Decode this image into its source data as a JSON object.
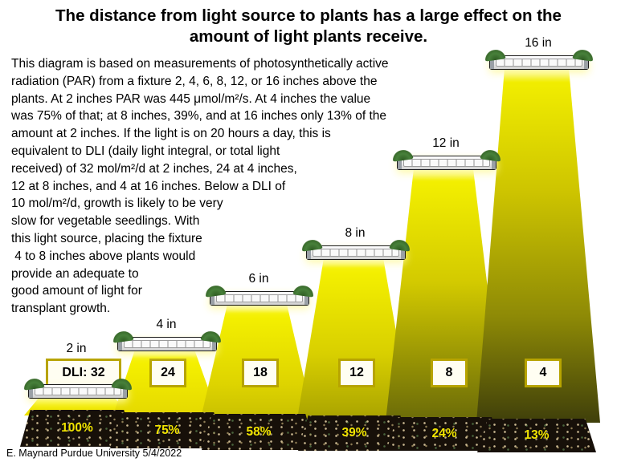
{
  "title": {
    "line1": "The distance from light source to plants has a large effect on the",
    "line2": "amount of light plants receive."
  },
  "body": {
    "lines": [
      "This diagram is based on measurements of photosynthetically active",
      "radiation (PAR) from a fixture 2, 4, 6, 8, 12, or 16 inches above the",
      "plants. At 2 inches PAR was 445 μmol/m²/s. At 4 inches the value",
      "was 75% of that; at 8 inches, 39%, and at 16 inches only 13% of the",
      "amount at 2 inches. If the light is on 20 hours a day, this is",
      "equivalent to DLI (daily light integral, or total light",
      "received) of 32 mol/m²/d at 2 inches, 24 at 4 inches,",
      "12 at 8 inches, and 4 at 16 inches. Below a DLI of",
      "10 mol/m²/d, growth is likely to be very",
      "slow for vegetable seedlings. With",
      "this light source, placing the fixture",
      " 4 to 8 inches above plants would",
      "provide an adequate to",
      "good amount of light for",
      "transplant growth."
    ]
  },
  "fixtures": [
    {
      "height_label": "2 in",
      "dli_label": "DLI: 32",
      "coverage_pct": "100%"
    },
    {
      "height_label": "4 in",
      "dli_label": "24",
      "coverage_pct": "75%"
    },
    {
      "height_label": "6 in",
      "dli_label": "18",
      "coverage_pct": "58%"
    },
    {
      "height_label": "8 in",
      "dli_label": "12",
      "coverage_pct": "39%"
    },
    {
      "height_label": "12 in",
      "dli_label": "8",
      "coverage_pct": "24%"
    },
    {
      "height_label": "16 in",
      "dli_label": "4",
      "coverage_pct": "13%"
    }
  ],
  "footer": {
    "credit": "E. Maynard Purdue University 5/4/2022"
  },
  "colors": {
    "cone_bright_yellow": "#f2ee00",
    "cone_dark_olive": "#3f3f0a",
    "tray_soil": "#171009",
    "percent_text": "#f2e400",
    "dli_box_border": "#b7a400",
    "text": "#000000",
    "background": "#ffffff"
  }
}
